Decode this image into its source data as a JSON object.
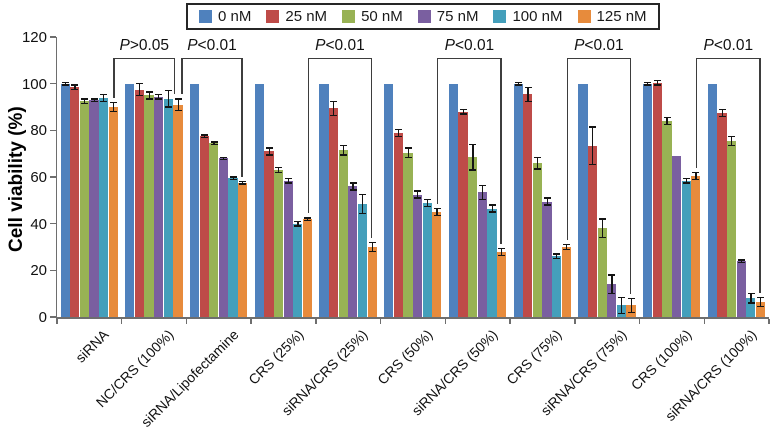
{
  "chart_data": {
    "type": "bar",
    "title": "",
    "ylabel": "Cell viability (%)",
    "xlabel": "",
    "ylim": [
      0,
      120
    ],
    "yticks": [
      0,
      20,
      40,
      60,
      80,
      100,
      120
    ],
    "grid": false,
    "legend_position": "top",
    "categories": [
      "siRNA",
      "NC/CRS (100%)",
      "siRNA/Lipofectamine",
      "CRS (25%)",
      "siRNA/CRS (25%)",
      "CRS (50%)",
      "siRNA/CRS (50%)",
      "CRS (75%)",
      "siRNA/CRS (75%)",
      "CRS (100%)",
      "siRNA/CRS (100%)"
    ],
    "series": [
      {
        "name": "0 nM",
        "color": "#4F81BD",
        "values": [
          100,
          100,
          100,
          100,
          100,
          100,
          100,
          100,
          100,
          100,
          100
        ],
        "errors": [
          0.5,
          0,
          0,
          0,
          0,
          0,
          0,
          0.5,
          0,
          0.5,
          0
        ]
      },
      {
        "name": "25 nM",
        "color": "#BE4B48",
        "values": [
          98.5,
          97.5,
          77.5,
          71,
          89.5,
          79,
          88,
          95.5,
          73.5,
          100.5,
          87.5
        ],
        "errors": [
          1,
          2.5,
          0.5,
          1.5,
          3,
          1.5,
          1,
          3,
          8,
          1,
          1.5
        ]
      },
      {
        "name": "50 nM",
        "color": "#98B254",
        "values": [
          92.5,
          95,
          74.5,
          63,
          71.5,
          70.5,
          68.5,
          66,
          38,
          84,
          75.5
        ],
        "errors": [
          1,
          1.5,
          0.5,
          1,
          2,
          2,
          5.5,
          2.5,
          4,
          1.5,
          2
        ]
      },
      {
        "name": "75 nM",
        "color": "#7A5FA0",
        "values": [
          93,
          94.5,
          68,
          58.5,
          56,
          52.5,
          53.5,
          49.5,
          14,
          69,
          24
        ],
        "errors": [
          0.5,
          1,
          0.5,
          1,
          1.5,
          1.5,
          3,
          1.5,
          4,
          0,
          0.5
        ]
      },
      {
        "name": "100 nM",
        "color": "#449FBB",
        "values": [
          94,
          93.5,
          59.5,
          40,
          48.5,
          49,
          46.5,
          26,
          5,
          58.5,
          8
        ],
        "errors": [
          1.5,
          3.5,
          0.5,
          1,
          4,
          1.5,
          1.5,
          1,
          3.5,
          1,
          2
        ]
      },
      {
        "name": "125 nM",
        "color": "#E78B3C",
        "values": [
          90,
          91,
          57.5,
          42,
          30,
          45,
          28,
          30,
          5,
          60.5,
          6.5
        ],
        "errors": [
          2,
          2.5,
          0.5,
          0.5,
          2,
          1.5,
          1.5,
          1,
          3,
          1.5,
          2
        ]
      }
    ],
    "annotations": [
      {
        "label": "P>0.05",
        "from_group": 0,
        "to_group": 1,
        "series": 5
      },
      {
        "label": "P<0.01",
        "from_group": 1,
        "to_group": 2,
        "series": 5
      },
      {
        "label": "P<0.01",
        "from_group": 3,
        "to_group": 4,
        "series": 5
      },
      {
        "label": "P<0.01",
        "from_group": 5,
        "to_group": 6,
        "series": 5
      },
      {
        "label": "P<0.01",
        "from_group": 7,
        "to_group": 8,
        "series": 5
      },
      {
        "label": "P<0.01",
        "from_group": 9,
        "to_group": 10,
        "series": 5
      }
    ]
  }
}
